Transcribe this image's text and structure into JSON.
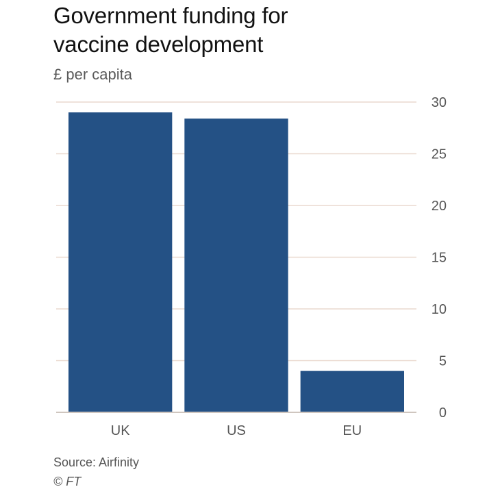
{
  "chart_data": {
    "type": "bar",
    "title": "Government funding for vaccine development",
    "title_lines": [
      "Government funding for",
      "vaccine development"
    ],
    "subtitle": "£ per capita",
    "xlabel": "",
    "ylabel": "£ per capita",
    "categories": [
      "UK",
      "US",
      "EU"
    ],
    "values": [
      29,
      28.4,
      4
    ],
    "ylim": [
      0,
      30
    ],
    "yticks": [
      0,
      5,
      10,
      15,
      20,
      25,
      30
    ],
    "grid": true,
    "y_axis_side": "right"
  },
  "colors": {
    "bar": "#245185",
    "gridline": "#ead9cf",
    "baseline": "#cfc6bf",
    "text_muted": "#555555"
  },
  "footer": {
    "source": "Source: Airfinity",
    "copyright": "© FT"
  }
}
